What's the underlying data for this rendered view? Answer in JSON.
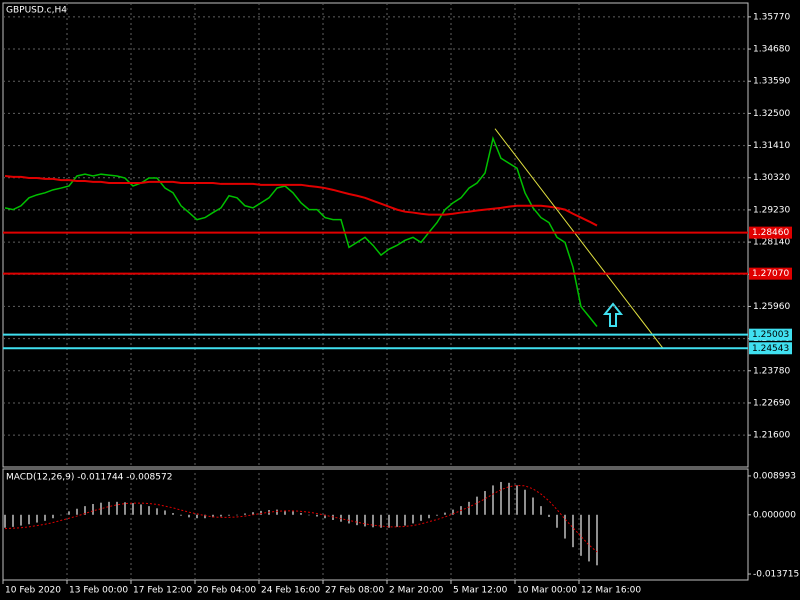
{
  "chart_data": [
    {
      "type": "price",
      "title": "GBPUSD.c,H4",
      "categories": [
        "10 Feb 2020",
        null,
        null,
        null,
        null,
        null,
        null,
        null,
        "13 Feb 00:00",
        null,
        null,
        null,
        null,
        null,
        null,
        null,
        "17 Feb 12:00",
        null,
        null,
        null,
        null,
        null,
        null,
        null,
        "20 Feb 04:00",
        null,
        null,
        null,
        null,
        null,
        null,
        null,
        "24 Feb 16:00",
        null,
        null,
        null,
        null,
        null,
        null,
        null,
        "27 Feb 08:00",
        null,
        null,
        null,
        null,
        null,
        null,
        null,
        "2 Mar 20:00",
        null,
        null,
        null,
        null,
        null,
        null,
        null,
        "5 Mar 12:00",
        null,
        null,
        null,
        null,
        null,
        null,
        null,
        "10 Mar 00:00",
        null,
        null,
        null,
        null,
        null,
        null,
        null,
        "12 Mar 16:00",
        null,
        null
      ],
      "series": [
        {
          "color": "#00c000",
          "values": [
            1.293,
            1.2924,
            1.2937,
            1.2964,
            1.2974,
            1.2981,
            1.2991,
            1.2997,
            1.3004,
            1.3038,
            1.3044,
            1.3038,
            1.3044,
            1.3041,
            1.3038,
            1.3031,
            1.3004,
            1.3014,
            1.3031,
            1.3031,
            1.2997,
            1.2981,
            1.2937,
            1.2914,
            1.289,
            1.2897,
            1.2914,
            1.293,
            1.2971,
            1.2964,
            1.2937,
            1.293,
            1.2947,
            1.2964,
            1.2997,
            1.3004,
            1.2981,
            1.2947,
            1.2924,
            1.2924,
            1.2897,
            1.289,
            1.289,
            1.2796,
            1.2813,
            1.283,
            1.2803,
            1.277,
            1.279,
            1.2803,
            1.282,
            1.283,
            1.2813,
            1.2847,
            1.288,
            1.2924,
            1.2947,
            1.2964,
            1.2997,
            1.3014,
            1.3048,
            1.3165,
            1.3098,
            1.3081,
            1.3064,
            1.2981,
            1.293,
            1.2897,
            1.288,
            1.283,
            1.2813,
            1.2729,
            1.2595,
            1.2562,
            1.2528
          ]
        },
        {
          "color": "#e00000",
          "values": [
            1.3038,
            1.3035,
            1.3035,
            1.3031,
            1.3031,
            1.3028,
            1.3028,
            1.3024,
            1.3024,
            1.3021,
            1.3021,
            1.3018,
            1.3018,
            1.3014,
            1.3014,
            1.3014,
            1.3014,
            1.3014,
            1.3018,
            1.3018,
            1.3018,
            1.3018,
            1.3014,
            1.3014,
            1.3014,
            1.3014,
            1.3014,
            1.3011,
            1.3011,
            1.3011,
            1.3011,
            1.3011,
            1.3008,
            1.3008,
            1.3008,
            1.3008,
            1.3008,
            1.3008,
            1.3004,
            1.3001,
            1.2997,
            1.2991,
            1.2984,
            1.2977,
            1.2971,
            1.2964,
            1.2954,
            1.2944,
            1.2934,
            1.2924,
            1.2917,
            1.2914,
            1.291,
            1.2907,
            1.2907,
            1.2907,
            1.291,
            1.2914,
            1.2917,
            1.2921,
            1.2924,
            1.2927,
            1.293,
            1.2934,
            1.2937,
            1.2937,
            1.2937,
            1.2937,
            1.2934,
            1.293,
            1.2924,
            1.291,
            1.2897,
            1.2884,
            1.287
          ]
        }
      ],
      "levels": [
        {
          "value": 1.2846,
          "label": "1.28460",
          "color": "#e00000"
        },
        {
          "value": 1.2707,
          "label": "1.27070",
          "color": "#e00000"
        },
        {
          "value": 1.25003,
          "label": "1.25003",
          "color": "#40e0f0"
        },
        {
          "value": 1.24543,
          "label": "1.24543",
          "color": "#40e0f0"
        }
      ],
      "trendline": {
        "color": "#e0e040",
        "start": 1.3198,
        "end": 1.2454
      },
      "ylim": [
        1.2052,
        1.3624
      ],
      "yticks": [
        {
          "value": 1.3577,
          "label": "1.35770"
        },
        {
          "value": 1.3468,
          "label": "1.34680"
        },
        {
          "value": 1.3359,
          "label": "1.33590"
        },
        {
          "value": 1.325,
          "label": "1.32500"
        },
        {
          "value": 1.3141,
          "label": "1.31410"
        },
        {
          "value": 1.3032,
          "label": "1.30320"
        },
        {
          "value": 1.2923,
          "label": "1.29230"
        },
        {
          "value": 1.2814,
          "label": "1.28140"
        },
        {
          "value": 1.2705,
          "label": "1.27050"
        },
        {
          "value": 1.2596,
          "label": "1.25960"
        },
        {
          "value": 1.2487,
          "label": "1.24870"
        },
        {
          "value": 1.2378,
          "label": "1.23780"
        },
        {
          "value": 1.2269,
          "label": "1.22690"
        },
        {
          "value": 1.216,
          "label": "1.21600"
        }
      ],
      "grid": true
    },
    {
      "type": "macd",
      "title": "MACD(12,26,9) -0.011744 -0.008572",
      "series": [
        {
          "color": "#c0c0c0",
          "values": [
            -0.003,
            -0.0028,
            -0.0025,
            -0.0022,
            -0.0018,
            -0.0014,
            -0.0008,
            0.0,
            0.0008,
            0.0014,
            0.002,
            0.0025,
            0.0028,
            0.003,
            0.003,
            0.0029,
            0.0027,
            0.0024,
            0.002,
            0.0015,
            0.001,
            0.0004,
            -0.0002,
            -0.0006,
            -0.0008,
            -0.0008,
            -0.0006,
            -0.0004,
            -0.0002,
            0.0,
            0.0003,
            0.0006,
            0.0009,
            0.0011,
            0.0012,
            0.001,
            0.0008,
            0.0004,
            0.0,
            -0.0004,
            -0.0008,
            -0.0012,
            -0.0016,
            -0.002,
            -0.0024,
            -0.0027,
            -0.0029,
            -0.003,
            -0.003,
            -0.0028,
            -0.0025,
            -0.002,
            -0.0014,
            -0.0008,
            -0.0002,
            0.0005,
            0.0012,
            0.002,
            0.003,
            0.0042,
            0.0055,
            0.0068,
            0.0076,
            0.0074,
            0.0068,
            0.0058,
            0.004,
            0.002,
            -0.0005,
            -0.003,
            -0.0055,
            -0.0075,
            -0.0095,
            -0.0108,
            -0.0117
          ]
        },
        {
          "color": "#e00000",
          "values": [
            -0.0032,
            -0.0031,
            -0.003,
            -0.0028,
            -0.0025,
            -0.0022,
            -0.0018,
            -0.0013,
            -0.0008,
            -0.0003,
            0.0003,
            0.0009,
            0.0014,
            0.0019,
            0.0023,
            0.0026,
            0.0027,
            0.0027,
            0.0026,
            0.0024,
            0.002,
            0.0016,
            0.0011,
            0.0006,
            0.0002,
            -0.0002,
            -0.0005,
            -0.0006,
            -0.0006,
            -0.0005,
            -0.0003,
            0.0,
            0.0003,
            0.0006,
            0.0008,
            0.0009,
            0.0009,
            0.0008,
            0.0006,
            0.0003,
            -0.0001,
            -0.0005,
            -0.0009,
            -0.0013,
            -0.0017,
            -0.0021,
            -0.0024,
            -0.0026,
            -0.0028,
            -0.0028,
            -0.0027,
            -0.0025,
            -0.0021,
            -0.0016,
            -0.0011,
            -0.0005,
            0.0002,
            0.001,
            0.0018,
            0.0027,
            0.0037,
            0.0048,
            0.0058,
            0.0065,
            0.0068,
            0.0067,
            0.006,
            0.0048,
            0.0032,
            0.0012,
            -0.001,
            -0.003,
            -0.005,
            -0.007,
            -0.0086
          ]
        }
      ],
      "ylim": [
        -0.0151,
        0.0106
      ],
      "yticks": [
        0.008993,
        {
          "value": 0,
          "label": "0.000000"
        },
        -0.013715
      ]
    }
  ]
}
